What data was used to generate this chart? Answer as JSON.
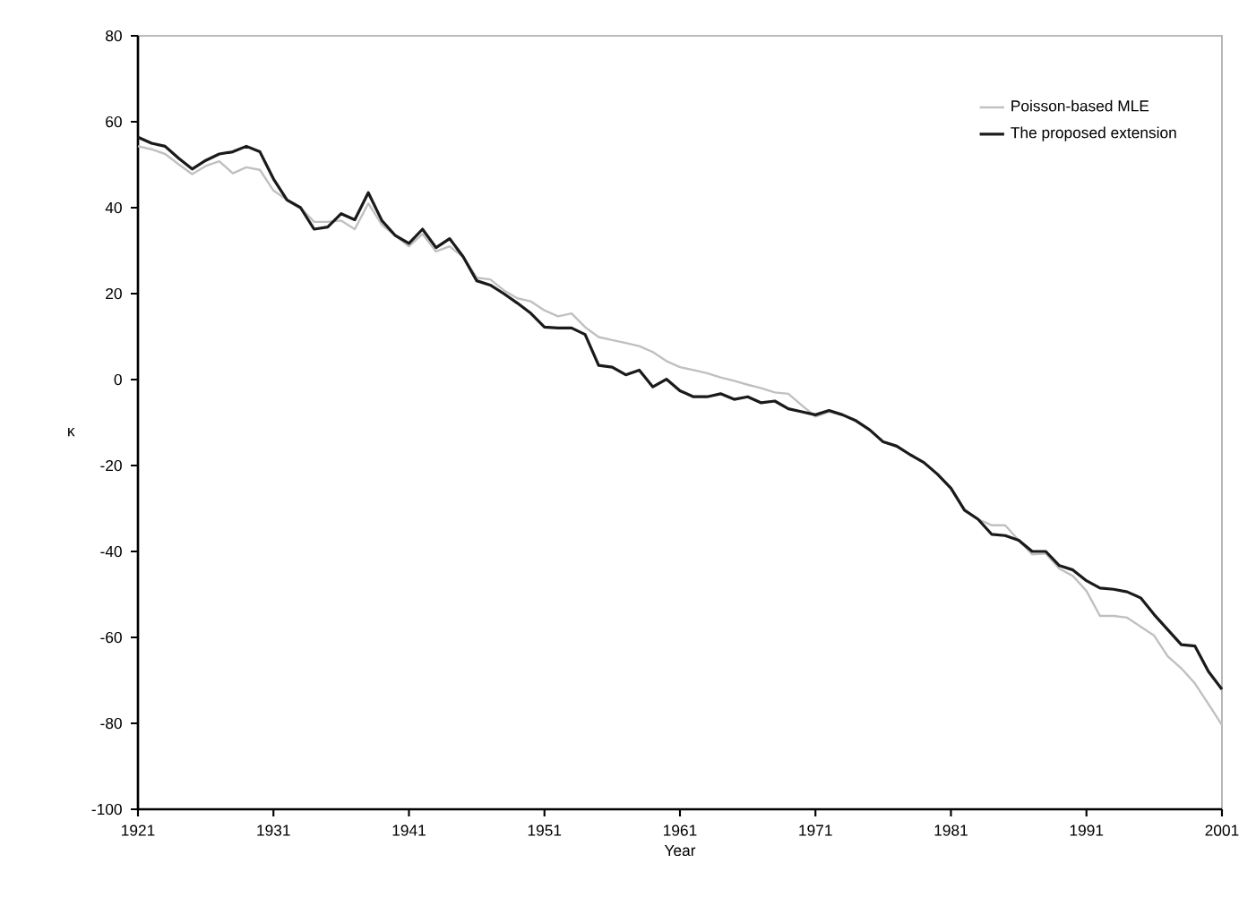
{
  "chart_data": {
    "type": "line",
    "xlabel": "Year",
    "ylabel": "κ",
    "x": [
      1921,
      1922,
      1923,
      1924,
      1925,
      1926,
      1927,
      1928,
      1929,
      1930,
      1931,
      1932,
      1933,
      1934,
      1935,
      1936,
      1937,
      1938,
      1939,
      1940,
      1941,
      1942,
      1943,
      1944,
      1945,
      1946,
      1947,
      1948,
      1949,
      1950,
      1951,
      1952,
      1953,
      1954,
      1955,
      1956,
      1957,
      1958,
      1959,
      1960,
      1961,
      1962,
      1963,
      1964,
      1965,
      1966,
      1967,
      1968,
      1969,
      1970,
      1971,
      1972,
      1973,
      1974,
      1975,
      1976,
      1977,
      1978,
      1979,
      1980,
      1981,
      1982,
      1983,
      1984,
      1985,
      1986,
      1987,
      1988,
      1989,
      1990,
      1991,
      1992,
      1993,
      1994,
      1995,
      1996,
      1997,
      1998,
      1999,
      2000,
      2001
    ],
    "series": [
      {
        "name": "Poisson-based MLE",
        "color": "#c0c0c0",
        "values": [
          54.3,
          53.6,
          52.5,
          50.1,
          47.8,
          49.7,
          50.8,
          48,
          49.4,
          48.8,
          44,
          41.8,
          40,
          36.7,
          36.7,
          37,
          35,
          41,
          36,
          33.5,
          31,
          33.9,
          29.8,
          31,
          28.6,
          23.7,
          23.3,
          20.8,
          18.9,
          18.2,
          16.1,
          14.7,
          15.4,
          12.2,
          9.9,
          9.2,
          8.5,
          7.8,
          6.4,
          4.3,
          2.9,
          2.2,
          1.5,
          0.5,
          -0.3,
          -1.2,
          -2,
          -3,
          -3.3,
          -6,
          -8.6,
          -7.5,
          -8.2,
          -9.6,
          -11.7,
          -14.5,
          -15.5,
          -17.5,
          -19.3,
          -22,
          -25.3,
          -30.4,
          -32.5,
          -33.9,
          -33.9,
          -37.4,
          -40.7,
          -40.5,
          -44,
          -45.7,
          -49.2,
          -55,
          -55,
          -55.4,
          -57.5,
          -59.6,
          -64.4,
          -67.2,
          -70.7,
          -75.5,
          -80.4
        ]
      },
      {
        "name": "The proposed extension",
        "color": "#1a1a1a",
        "values": [
          56.4,
          55,
          54.3,
          51.5,
          49,
          51,
          52.5,
          53,
          54.3,
          53,
          46.7,
          41.8,
          40,
          35,
          35.5,
          38.6,
          37.2,
          43.5,
          37,
          33.5,
          31.7,
          35,
          30.7,
          32.8,
          28.6,
          23,
          22,
          20,
          17.8,
          15.4,
          12.2,
          12,
          12,
          10.5,
          3.3,
          2.9,
          1.1,
          2.2,
          -1.7,
          0.1,
          -2.6,
          -4,
          -4,
          -3.3,
          -4.6,
          -4,
          -5.4,
          -5,
          -6.8,
          -7.5,
          -8.2,
          -7.2,
          -8.2,
          -9.6,
          -11.7,
          -14.5,
          -15.5,
          -17.5,
          -19.3,
          -22,
          -25.3,
          -30.4,
          -32.5,
          -36,
          -36.3,
          -37.4,
          -40,
          -40,
          -43.3,
          -44.3,
          -46.8,
          -48.5,
          -48.8,
          -49.4,
          -50.8,
          -54.7,
          -58.2,
          -61.7,
          -62,
          -67.9,
          -72.1
        ]
      }
    ],
    "xlim": [
      1921,
      2001
    ],
    "xticks": [
      1921,
      1931,
      1941,
      1951,
      1961,
      1971,
      1981,
      1991,
      2001
    ],
    "ylim": [
      -100,
      80
    ],
    "yticks": [
      -100,
      -80,
      -60,
      -40,
      -20,
      0,
      20,
      40,
      60,
      80
    ],
    "legend": "top right",
    "grid": false,
    "marker": "none",
    "line_style": "solid"
  }
}
